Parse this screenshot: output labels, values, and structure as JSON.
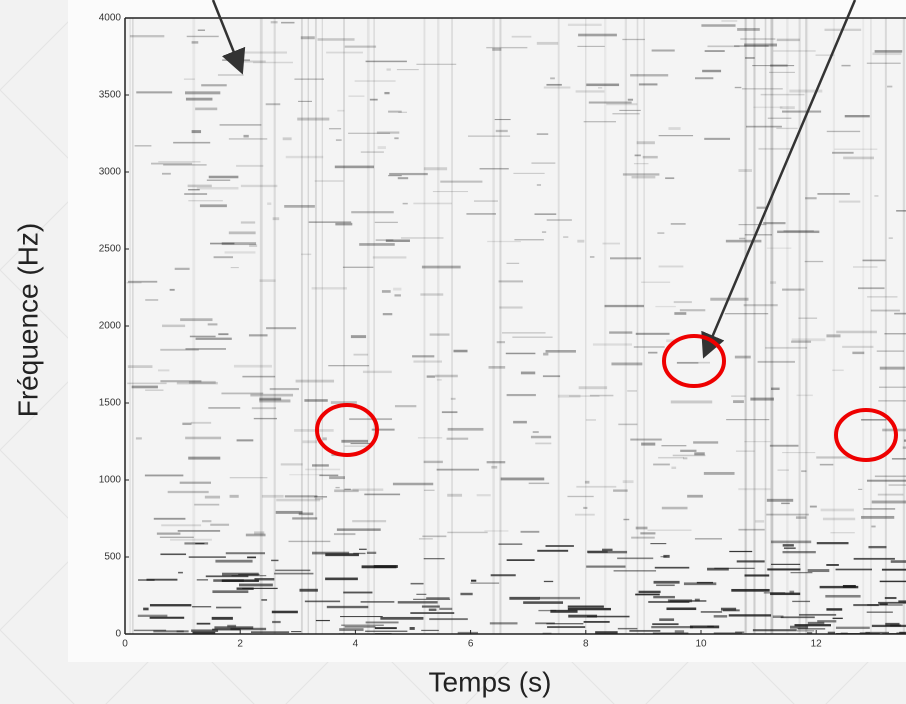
{
  "chart_data": {
    "type": "spectrogram",
    "x_label": "Temps (s)",
    "y_label": "Fréquence (Hz)",
    "xlim": [
      0,
      14
    ],
    "xticks": [
      0,
      2,
      4,
      6,
      8,
      10,
      12
    ],
    "ylim": [
      0,
      4000
    ],
    "yticks": [
      0,
      500,
      1000,
      1500,
      2000,
      2500,
      3000,
      3500,
      4000
    ],
    "color": "#1a1a1a"
  }
}
